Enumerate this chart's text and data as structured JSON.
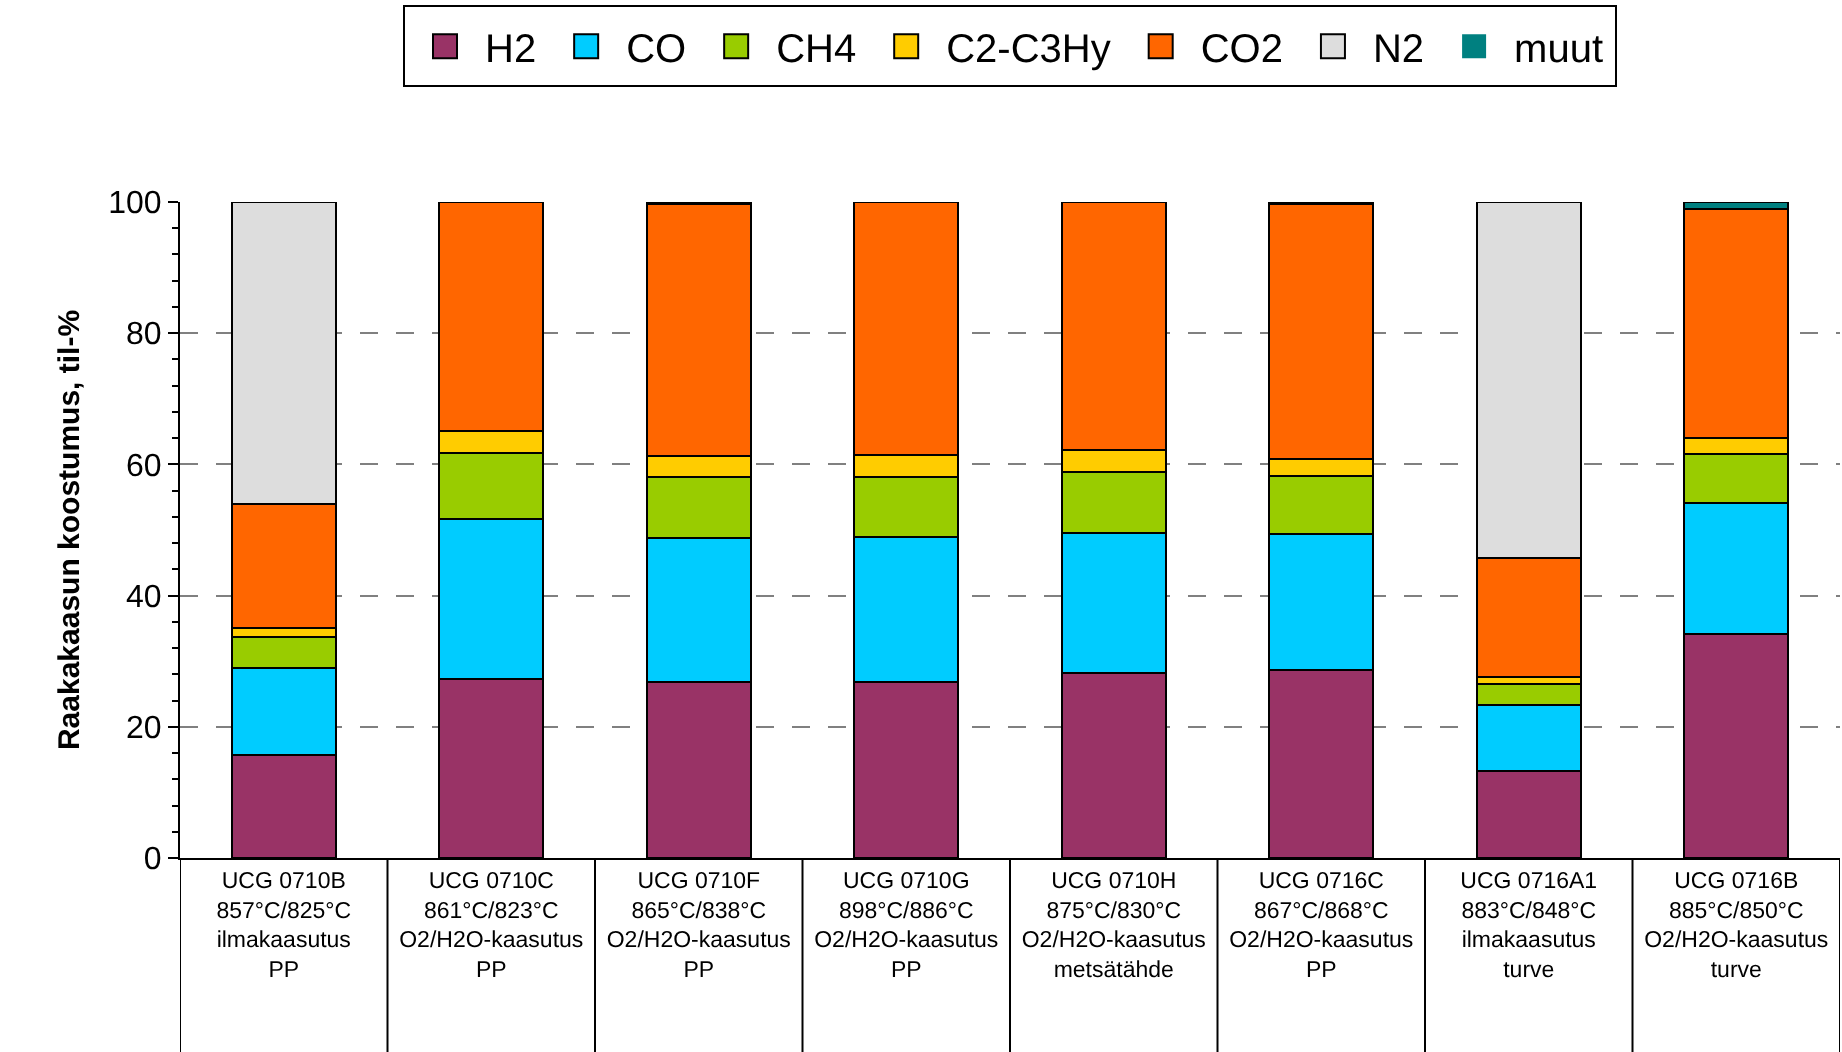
{
  "chart_data": {
    "type": "bar",
    "stacked": true,
    "ylabel": "Raakakaasun koostumus, til-%",
    "categories": [
      "UCG 0710B\n857°C/825°C\nilmakaasutus\nPP",
      "UCG 0710C\n861°C/823°C\nO2/H2O-kaasutus\nPP",
      "UCG 0710F\n865°C/838°C\nO2/H2O-kaasutus\nPP",
      "UCG 0710G\n898°C/886°C\nO2/H2O-kaasutus\nPP",
      "UCG 0710H\n875°C/830°C\nO2/H2O-kaasutus\nmetsätähde",
      "UCG 0716C\n867°C/868°C\nO2/H2O-kaasutus\nPP",
      "UCG 0716A1\n883°C/848°C\nilmakaasutus\nturve",
      "UCG 0716B\n885°C/850°C\nO2/H2O-kaasutus\nturve"
    ],
    "series": [
      {
        "name": "H2",
        "color": "#993366",
        "values": [
          15.7,
          27.3,
          26.9,
          26.9,
          28.2,
          28.6,
          13.3,
          34.2
        ]
      },
      {
        "name": "CO",
        "color": "#00ccff",
        "values": [
          13.3,
          24.4,
          21.9,
          22.0,
          21.3,
          20.8,
          10.0,
          19.9
        ]
      },
      {
        "name": "CH4",
        "color": "#99cc00",
        "values": [
          4.7,
          10.1,
          9.3,
          9.2,
          9.4,
          8.8,
          3.2,
          7.5
        ]
      },
      {
        "name": "C2-C3Hy",
        "color": "#ffcc00",
        "values": [
          1.4,
          3.3,
          3.2,
          3.3,
          3.3,
          2.7,
          1.1,
          2.4
        ]
      },
      {
        "name": "CO2",
        "color": "#ff6600",
        "values": [
          18.8,
          34.9,
          38.4,
          38.6,
          37.8,
          38.8,
          18.1,
          35.0
        ]
      },
      {
        "name": "N2",
        "color": "#dddddd",
        "values": [
          46.1,
          0,
          0,
          0,
          0,
          0,
          54.3,
          0
        ]
      },
      {
        "name": "muut",
        "color": "#008080",
        "values": [
          0,
          0,
          0.3,
          0,
          0,
          0.3,
          0,
          1.0
        ]
      }
    ],
    "ylim": [
      0,
      100
    ],
    "yticks": [
      0,
      20,
      40,
      60,
      80,
      100
    ],
    "grid": "y",
    "legend": "top"
  }
}
